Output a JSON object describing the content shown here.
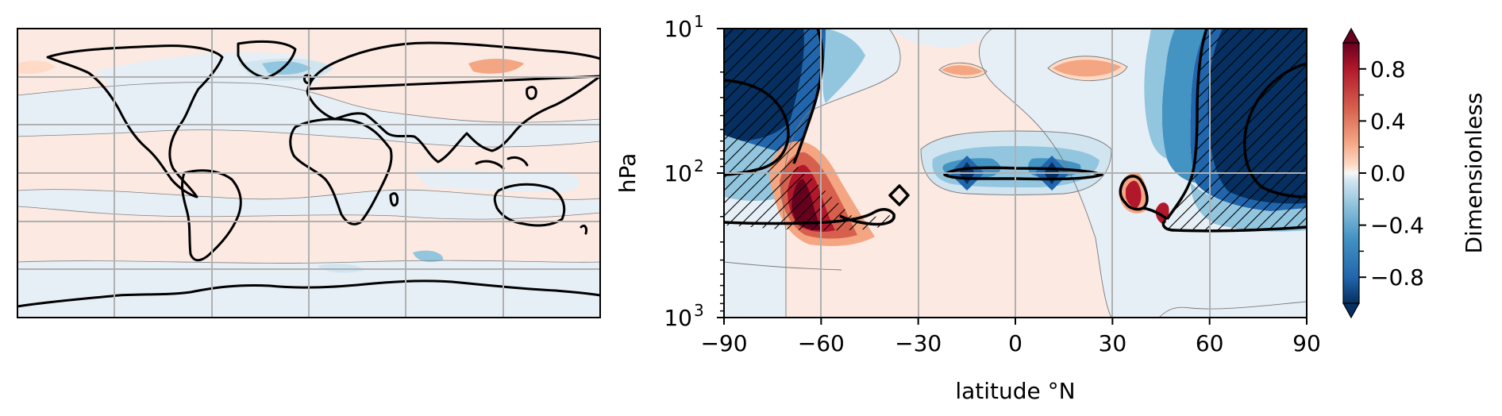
{
  "chart_data": [
    {
      "type": "heatmap",
      "title": "",
      "xlabel": "",
      "ylabel": "",
      "projection": "plate-carree",
      "coastlines": true,
      "grid": true,
      "colorbar": "shared",
      "fields": [
        {
          "lon": [
            -120,
            -40
          ],
          "lat": [
            30,
            60
          ],
          "level": "negative"
        },
        {
          "lon": [
            -40,
            30
          ],
          "lat": [
            60,
            75
          ],
          "level": "negative"
        },
        {
          "lon": [
            30,
            90
          ],
          "lat": [
            55,
            70
          ],
          "level": "weak-negative"
        },
        {
          "lon": [
            110,
            150
          ],
          "lat": [
            55,
            75
          ],
          "level": "weak-positive"
        },
        {
          "lon": [
            -180,
            180
          ],
          "lat": [
            -90,
            -60
          ],
          "level": "negative"
        },
        {
          "lon": [
            -180,
            180
          ],
          "lat": [
            -30,
            0
          ],
          "level": "weak-positive"
        }
      ]
    },
    {
      "type": "heatmap",
      "title": "",
      "xlabel": "latitude °N",
      "ylabel": "hPa",
      "xlim": [
        -90,
        90
      ],
      "ylim": [
        1000,
        10
      ],
      "yscale": "log",
      "grid": true,
      "x_ticks": [
        -90,
        -60,
        -30,
        0,
        30,
        60,
        90
      ],
      "x_tick_labels": [
        "−90",
        "−60",
        "−30",
        "0",
        "30",
        "60",
        "90"
      ],
      "y_ticks": [
        {
          "value": 10,
          "base": "10",
          "exp": "1"
        },
        {
          "value": 100,
          "base": "10",
          "exp": "2"
        },
        {
          "value": 1000,
          "base": "10",
          "exp": "3"
        }
      ],
      "regions": [
        {
          "lat": -80,
          "p": 20,
          "level": -0.9
        },
        {
          "lat": -65,
          "p": 130,
          "level": 0.9
        },
        {
          "lat": -33,
          "p": 150,
          "level": -0.3
        },
        {
          "lat": -10,
          "p": 100,
          "level": -0.9
        },
        {
          "lat": 10,
          "p": 100,
          "level": -0.9
        },
        {
          "lat": -15,
          "p": 30,
          "level": 0.3
        },
        {
          "lat": 15,
          "p": 30,
          "level": 0.3
        },
        {
          "lat": 38,
          "p": 140,
          "level": 0.8
        },
        {
          "lat": 47,
          "p": 180,
          "level": 0.8
        },
        {
          "lat": 78,
          "p": 30,
          "level": -0.9
        }
      ],
      "hatched_regions": [
        "south polar stratosphere",
        "north polar stratosphere"
      ]
    }
  ],
  "colorbar": {
    "label": "Dimensionless",
    "range": [
      -1.0,
      1.0
    ],
    "extend": "both",
    "ticks": [
      0.8,
      0.4,
      0.0,
      -0.4,
      -0.8
    ],
    "tick_labels": [
      "0.8",
      "0.4",
      "0.0",
      "−0.4",
      "−0.8"
    ],
    "colors": [
      "#053061",
      "#2166ac",
      "#4393c3",
      "#92c5de",
      "#d1e5f0",
      "#e7eff6",
      "#fbe9e2",
      "#fddbc7",
      "#f4a582",
      "#d6604d",
      "#b2182b",
      "#67001f"
    ]
  }
}
